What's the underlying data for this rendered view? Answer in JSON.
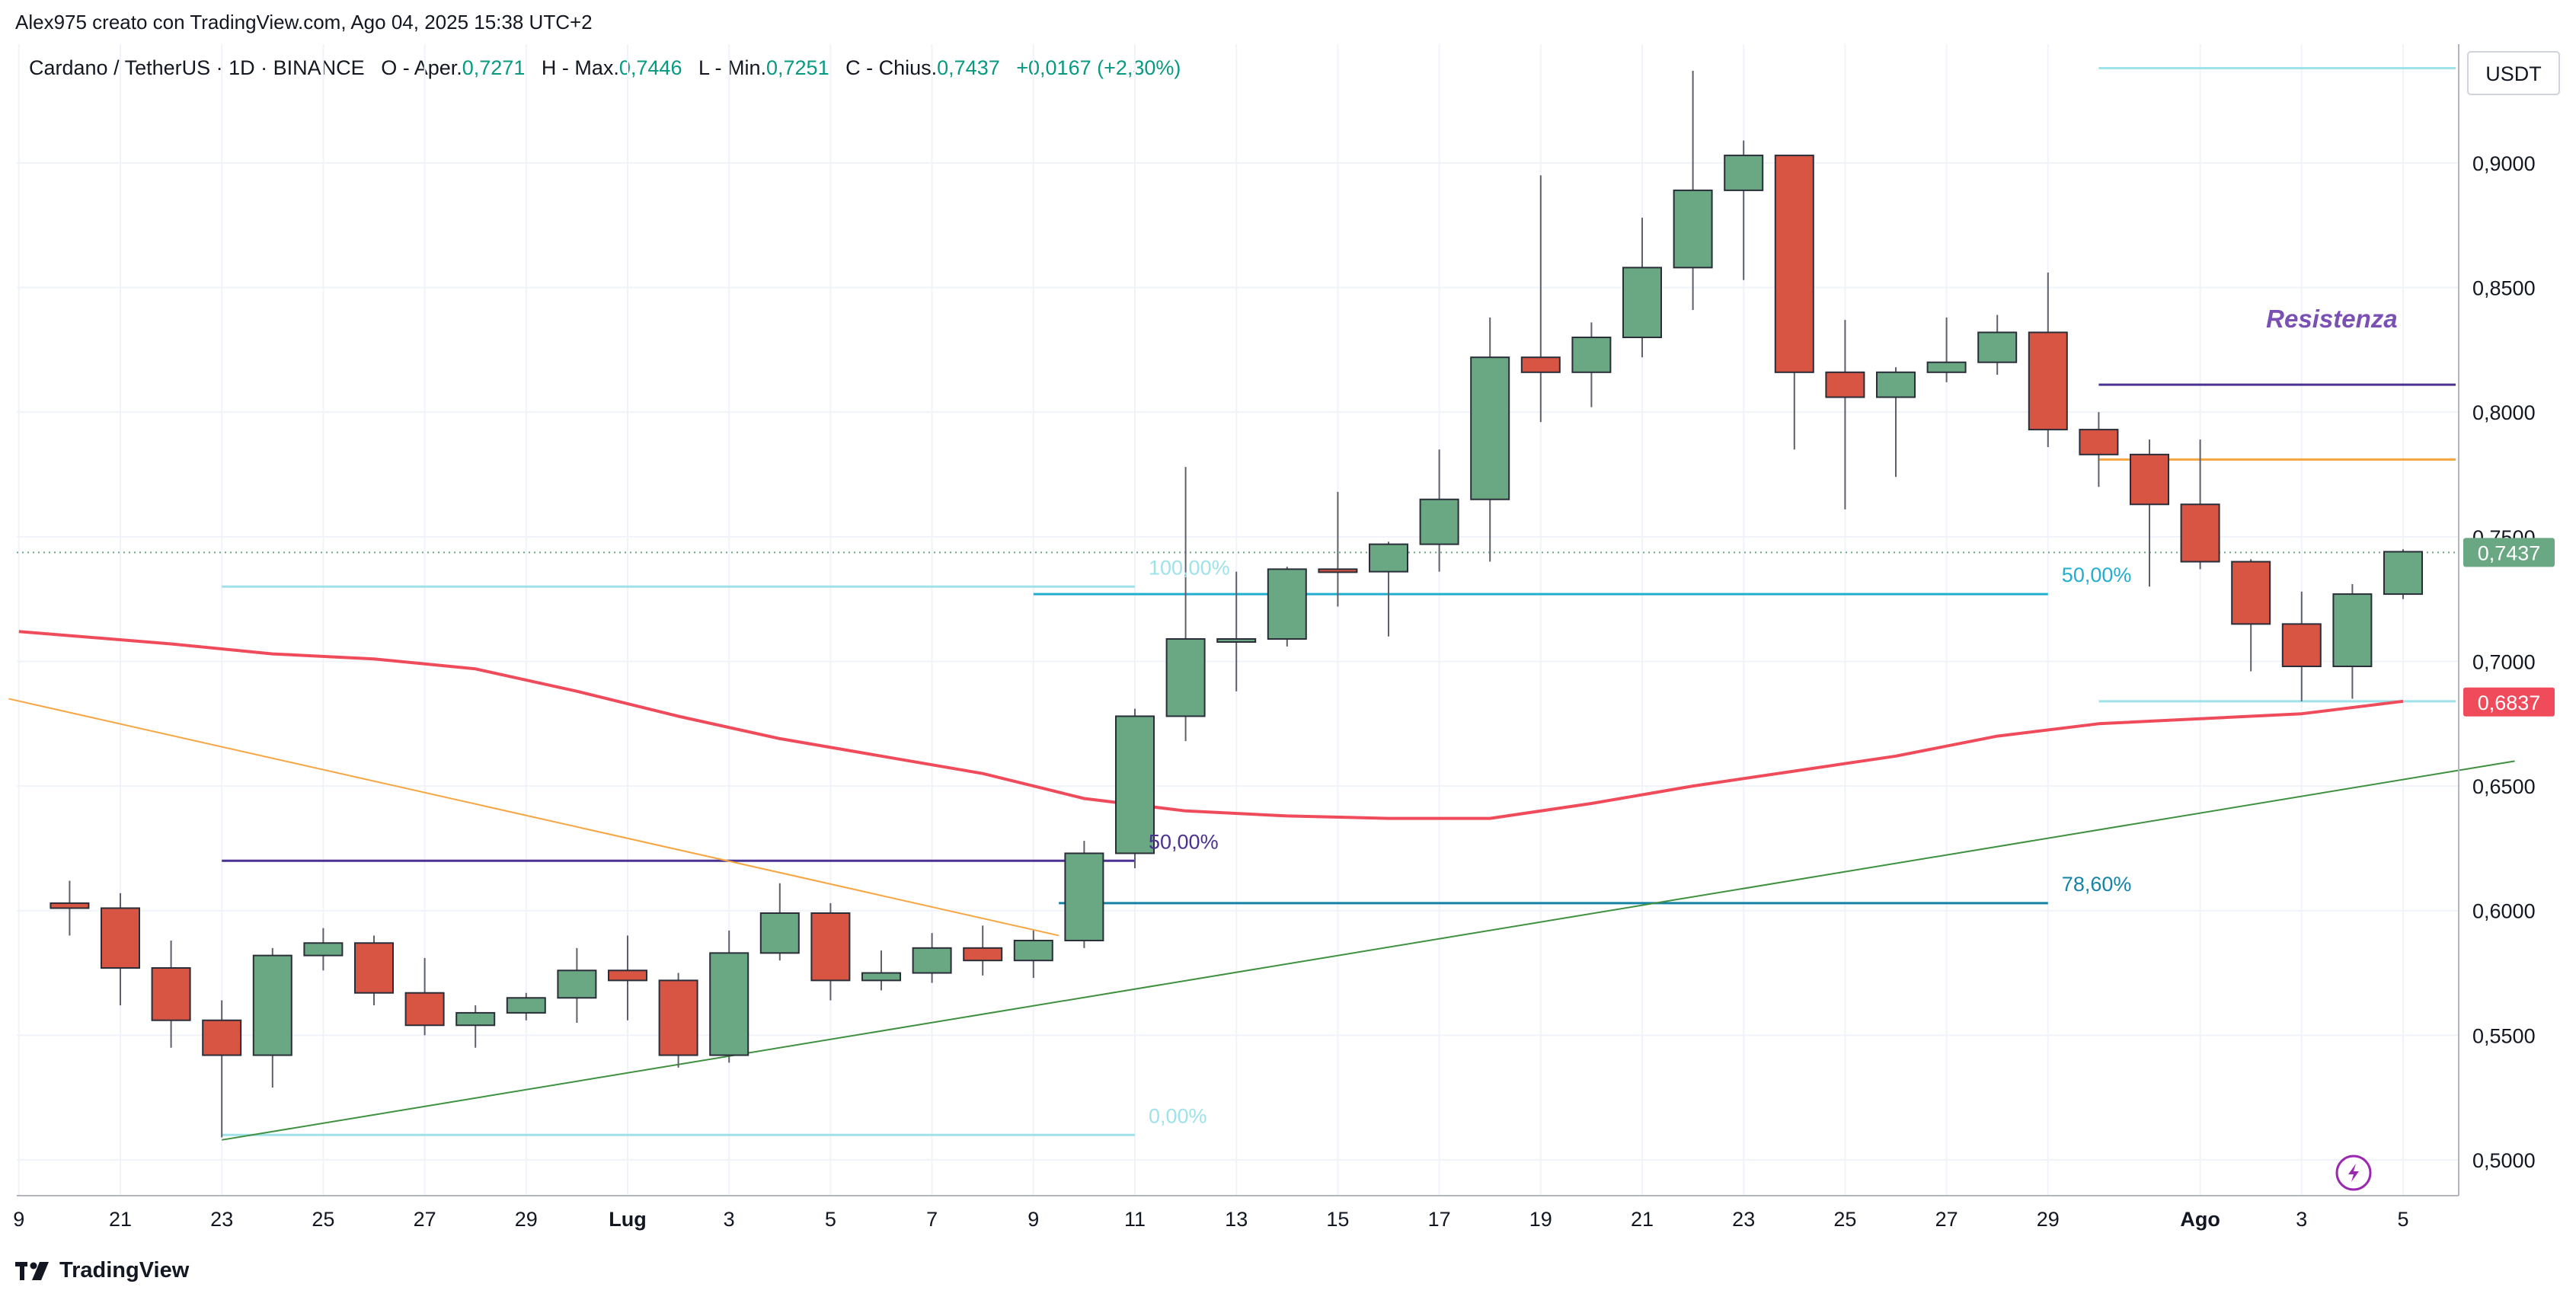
{
  "header": {
    "credit": "Alex975 creato con TradingView.com, Ago 04, 2025 15:38 UTC+2"
  },
  "legend": {
    "symbol": "Cardano / TetherUS · 1D · BINANCE",
    "open_label": "O - Aper.",
    "open_value": "0,7271",
    "high_label": "H - Max.",
    "high_value": "0,7446",
    "low_label": "L - Min.",
    "low_value": "0,7251",
    "close_label": "C - Chius.",
    "close_value": "0,7437",
    "change": "+0,0167 (+2,30%)"
  },
  "brand": {
    "name": "TradingView"
  },
  "colors": {
    "up": "#6aa884",
    "down": "#d85443",
    "ma": "#ef4b5b",
    "trend_green": "#3f9140",
    "trend_orange": "#f7a540",
    "fib_light": "#9ee2ea",
    "fib_mid": "#22aecf",
    "fib_dark": "#1583a5",
    "purple": "#4a3193",
    "resistance_text": "#7b50b4",
    "last_price": "#6aa884"
  },
  "chart_data": {
    "type": "candlestick",
    "title": "",
    "xlabel": "",
    "ylabel": "USDT",
    "ylim": [
      0.488,
      0.952
    ],
    "yticks": [
      0.5,
      0.55,
      0.6,
      0.65,
      0.7,
      0.75,
      0.8,
      0.85,
      0.9
    ],
    "ytick_labels": [
      "0,5000",
      "0,5500",
      "0,6000",
      "0,6500",
      "0,7000",
      "0,7500",
      "0,8000",
      "0,8500",
      "0,9000"
    ],
    "xticks": [
      {
        "label": "9",
        "idx": -2,
        "bold": false
      },
      {
        "label": "21",
        "idx": 0,
        "bold": false
      },
      {
        "label": "23",
        "idx": 2,
        "bold": false
      },
      {
        "label": "25",
        "idx": 4,
        "bold": false
      },
      {
        "label": "27",
        "idx": 6,
        "bold": false
      },
      {
        "label": "29",
        "idx": 8,
        "bold": false
      },
      {
        "label": "Lug",
        "idx": 10,
        "bold": true
      },
      {
        "label": "3",
        "idx": 12,
        "bold": false
      },
      {
        "label": "5",
        "idx": 14,
        "bold": false
      },
      {
        "label": "7",
        "idx": 16,
        "bold": false
      },
      {
        "label": "9",
        "idx": 18,
        "bold": false
      },
      {
        "label": "11",
        "idx": 20,
        "bold": false
      },
      {
        "label": "13",
        "idx": 22,
        "bold": false
      },
      {
        "label": "15",
        "idx": 24,
        "bold": false
      },
      {
        "label": "17",
        "idx": 26,
        "bold": false
      },
      {
        "label": "19",
        "idx": 28,
        "bold": false
      },
      {
        "label": "21",
        "idx": 30,
        "bold": false
      },
      {
        "label": "23",
        "idx": 32,
        "bold": false
      },
      {
        "label": "25",
        "idx": 34,
        "bold": false
      },
      {
        "label": "27",
        "idx": 36,
        "bold": false
      },
      {
        "label": "29",
        "idx": 38,
        "bold": false
      },
      {
        "label": "Ago",
        "idx": 41,
        "bold": true
      },
      {
        "label": "3",
        "idx": 43,
        "bold": false
      },
      {
        "label": "5",
        "idx": 45,
        "bold": false
      }
    ],
    "candles": [
      {
        "idx": -1,
        "o": 0.603,
        "h": 0.612,
        "l": 0.59,
        "c": 0.601
      },
      {
        "idx": 0,
        "o": 0.601,
        "h": 0.607,
        "l": 0.562,
        "c": 0.577
      },
      {
        "idx": 1,
        "o": 0.577,
        "h": 0.588,
        "l": 0.545,
        "c": 0.556
      },
      {
        "idx": 2,
        "o": 0.556,
        "h": 0.564,
        "l": 0.509,
        "c": 0.542
      },
      {
        "idx": 3,
        "o": 0.542,
        "h": 0.585,
        "l": 0.529,
        "c": 0.582
      },
      {
        "idx": 4,
        "o": 0.582,
        "h": 0.593,
        "l": 0.576,
        "c": 0.587
      },
      {
        "idx": 5,
        "o": 0.587,
        "h": 0.59,
        "l": 0.562,
        "c": 0.567
      },
      {
        "idx": 6,
        "o": 0.567,
        "h": 0.581,
        "l": 0.55,
        "c": 0.554
      },
      {
        "idx": 7,
        "o": 0.554,
        "h": 0.562,
        "l": 0.545,
        "c": 0.559
      },
      {
        "idx": 8,
        "o": 0.559,
        "h": 0.567,
        "l": 0.556,
        "c": 0.565
      },
      {
        "idx": 9,
        "o": 0.565,
        "h": 0.585,
        "l": 0.555,
        "c": 0.576
      },
      {
        "idx": 10,
        "o": 0.576,
        "h": 0.59,
        "l": 0.556,
        "c": 0.572
      },
      {
        "idx": 11,
        "o": 0.572,
        "h": 0.575,
        "l": 0.537,
        "c": 0.542
      },
      {
        "idx": 12,
        "o": 0.542,
        "h": 0.592,
        "l": 0.539,
        "c": 0.583
      },
      {
        "idx": 13,
        "o": 0.583,
        "h": 0.611,
        "l": 0.58,
        "c": 0.599
      },
      {
        "idx": 14,
        "o": 0.599,
        "h": 0.603,
        "l": 0.564,
        "c": 0.572
      },
      {
        "idx": 15,
        "o": 0.572,
        "h": 0.584,
        "l": 0.568,
        "c": 0.575
      },
      {
        "idx": 16,
        "o": 0.575,
        "h": 0.591,
        "l": 0.571,
        "c": 0.585
      },
      {
        "idx": 17,
        "o": 0.585,
        "h": 0.594,
        "l": 0.574,
        "c": 0.58
      },
      {
        "idx": 18,
        "o": 0.58,
        "h": 0.592,
        "l": 0.573,
        "c": 0.588
      },
      {
        "idx": 19,
        "o": 0.588,
        "h": 0.628,
        "l": 0.585,
        "c": 0.623
      },
      {
        "idx": 20,
        "o": 0.623,
        "h": 0.681,
        "l": 0.617,
        "c": 0.678
      },
      {
        "idx": 21,
        "o": 0.678,
        "h": 0.778,
        "l": 0.668,
        "c": 0.709
      },
      {
        "idx": 22,
        "o": 0.709,
        "h": 0.736,
        "l": 0.688,
        "c": 0.709
      },
      {
        "idx": 23,
        "o": 0.709,
        "h": 0.738,
        "l": 0.706,
        "c": 0.737
      },
      {
        "idx": 24,
        "o": 0.737,
        "h": 0.768,
        "l": 0.722,
        "c": 0.736
      },
      {
        "idx": 25,
        "o": 0.736,
        "h": 0.748,
        "l": 0.71,
        "c": 0.747
      },
      {
        "idx": 26,
        "o": 0.747,
        "h": 0.785,
        "l": 0.736,
        "c": 0.765
      },
      {
        "idx": 27,
        "o": 0.765,
        "h": 0.838,
        "l": 0.74,
        "c": 0.822
      },
      {
        "idx": 28,
        "o": 0.822,
        "h": 0.895,
        "l": 0.796,
        "c": 0.816
      },
      {
        "idx": 29,
        "o": 0.816,
        "h": 0.836,
        "l": 0.802,
        "c": 0.83
      },
      {
        "idx": 30,
        "o": 0.83,
        "h": 0.878,
        "l": 0.822,
        "c": 0.858
      },
      {
        "idx": 31,
        "o": 0.858,
        "h": 0.937,
        "l": 0.841,
        "c": 0.889
      },
      {
        "idx": 32,
        "o": 0.889,
        "h": 0.909,
        "l": 0.853,
        "c": 0.903
      },
      {
        "idx": 33,
        "o": 0.903,
        "h": 0.903,
        "l": 0.785,
        "c": 0.816
      },
      {
        "idx": 34,
        "o": 0.816,
        "h": 0.837,
        "l": 0.761,
        "c": 0.806
      },
      {
        "idx": 35,
        "o": 0.806,
        "h": 0.818,
        "l": 0.774,
        "c": 0.816
      },
      {
        "idx": 36,
        "o": 0.816,
        "h": 0.838,
        "l": 0.812,
        "c": 0.82
      },
      {
        "idx": 37,
        "o": 0.82,
        "h": 0.839,
        "l": 0.815,
        "c": 0.832
      },
      {
        "idx": 38,
        "o": 0.832,
        "h": 0.856,
        "l": 0.786,
        "c": 0.793
      },
      {
        "idx": 39,
        "o": 0.793,
        "h": 0.8,
        "l": 0.77,
        "c": 0.783
      },
      {
        "idx": 40,
        "o": 0.783,
        "h": 0.789,
        "l": 0.73,
        "c": 0.763
      },
      {
        "idx": 41,
        "o": 0.763,
        "h": 0.789,
        "l": 0.737,
        "c": 0.74
      },
      {
        "idx": 42,
        "o": 0.74,
        "h": 0.741,
        "l": 0.696,
        "c": 0.715
      },
      {
        "idx": 43,
        "o": 0.715,
        "h": 0.728,
        "l": 0.684,
        "c": 0.698
      },
      {
        "idx": 44,
        "o": 0.698,
        "h": 0.731,
        "l": 0.685,
        "c": 0.727
      },
      {
        "idx": 45,
        "o": 0.727,
        "h": 0.745,
        "l": 0.725,
        "c": 0.744
      }
    ],
    "moving_average": [
      {
        "idx": -2,
        "y": 0.712
      },
      {
        "idx": 1,
        "y": 0.707
      },
      {
        "idx": 3,
        "y": 0.703
      },
      {
        "idx": 5,
        "y": 0.701
      },
      {
        "idx": 7,
        "y": 0.697
      },
      {
        "idx": 9,
        "y": 0.688
      },
      {
        "idx": 11,
        "y": 0.678
      },
      {
        "idx": 13,
        "y": 0.669
      },
      {
        "idx": 15,
        "y": 0.662
      },
      {
        "idx": 17,
        "y": 0.655
      },
      {
        "idx": 19,
        "y": 0.645
      },
      {
        "idx": 21,
        "y": 0.64
      },
      {
        "idx": 23,
        "y": 0.638
      },
      {
        "idx": 25,
        "y": 0.637
      },
      {
        "idx": 27,
        "y": 0.637
      },
      {
        "idx": 29,
        "y": 0.643
      },
      {
        "idx": 31,
        "y": 0.65
      },
      {
        "idx": 33,
        "y": 0.656
      },
      {
        "idx": 35,
        "y": 0.662
      },
      {
        "idx": 37,
        "y": 0.67
      },
      {
        "idx": 39,
        "y": 0.675
      },
      {
        "idx": 41,
        "y": 0.677
      },
      {
        "idx": 43,
        "y": 0.679
      },
      {
        "idx": 45,
        "y": 0.684
      }
    ],
    "trendlines": [
      {
        "name": "support",
        "color": "green",
        "from": {
          "idx": 2,
          "y": 0.508
        },
        "to": {
          "idx": 47.2,
          "y": 0.66
        }
      },
      {
        "name": "resistance-down",
        "color": "orange",
        "from": {
          "idx": -2.2,
          "y": 0.685
        },
        "to": {
          "idx": 18.5,
          "y": 0.59
        }
      }
    ],
    "fib_retracement": {
      "range_idx": [
        2,
        20
      ],
      "levels": [
        {
          "label": "100,00%",
          "value": 0.73
        },
        {
          "label": "50,00%",
          "value": 0.62
        },
        {
          "label": "0,00%",
          "value": 0.51
        }
      ]
    },
    "fib_extension": {
      "levels": [
        {
          "label": "50,00%",
          "value": 0.727,
          "from_idx": 18,
          "to_idx": 38
        },
        {
          "label": "78,60%",
          "value": 0.603,
          "from_idx": 18.5,
          "to_idx": 38
        }
      ]
    },
    "horizontal_levels": [
      {
        "name": "top-light",
        "value": 0.938,
        "from_idx": 39,
        "to_idx": 47
      },
      {
        "name": "resistance",
        "value": 0.811,
        "from_idx": 39,
        "to_idx": 47
      },
      {
        "name": "orange-level",
        "value": 0.781,
        "from_idx": 39,
        "to_idx": 47
      },
      {
        "name": "bottom-light",
        "value": 0.684,
        "from_idx": 39,
        "to_idx": 47
      }
    ],
    "annotations": [
      {
        "text": "Resistenza",
        "value": 0.834,
        "idx": 42.3
      }
    ],
    "price_labels": [
      {
        "value": 0.7437,
        "label": "0,7437",
        "type": "last"
      },
      {
        "value": 0.6837,
        "label": "0,6837",
        "type": "ma"
      }
    ]
  }
}
